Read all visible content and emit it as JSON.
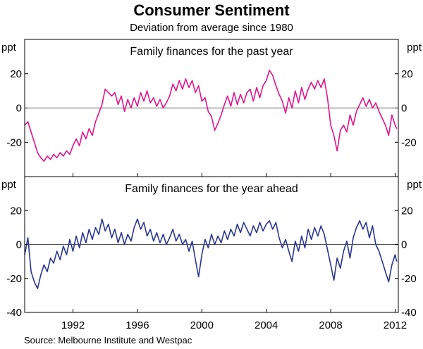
{
  "chart_data": {
    "type": "line",
    "title": "Consumer Sentiment",
    "subtitle": "Deviation from average since 1980",
    "source": "Source: Melbourne Institute and Westpac",
    "x_range": [
      1989.0,
      2012.2
    ],
    "x_ticks": [
      1992,
      1996,
      2000,
      2004,
      2008,
      2012
    ],
    "y_unit_label": "ppt",
    "panels": [
      {
        "title": "Family finances for the past year",
        "ylim": [
          -40,
          40
        ],
        "y_ticks": [
          20,
          0,
          -20
        ],
        "series": [
          {
            "name": "Family finances for the past year",
            "color": "#e0158c",
            "points": [
              [
                1989.0,
                -10
              ],
              [
                1989.2,
                -8
              ],
              [
                1989.4,
                -14
              ],
              [
                1989.6,
                -20
              ],
              [
                1989.8,
                -26
              ],
              [
                1990.0,
                -29
              ],
              [
                1990.2,
                -31
              ],
              [
                1990.4,
                -28
              ],
              [
                1990.6,
                -30
              ],
              [
                1990.8,
                -27
              ],
              [
                1991.0,
                -29
              ],
              [
                1991.2,
                -26
              ],
              [
                1991.4,
                -28
              ],
              [
                1991.6,
                -25
              ],
              [
                1991.8,
                -27
              ],
              [
                1992.0,
                -22
              ],
              [
                1992.2,
                -18
              ],
              [
                1992.4,
                -22
              ],
              [
                1992.6,
                -14
              ],
              [
                1992.8,
                -18
              ],
              [
                1993.0,
                -12
              ],
              [
                1993.2,
                -16
              ],
              [
                1993.4,
                -8
              ],
              [
                1993.6,
                -3
              ],
              [
                1993.8,
                2
              ],
              [
                1994.0,
                11
              ],
              [
                1994.2,
                9
              ],
              [
                1994.4,
                7
              ],
              [
                1994.6,
                9
              ],
              [
                1994.8,
                2
              ],
              [
                1995.0,
                7
              ],
              [
                1995.2,
                -2
              ],
              [
                1995.4,
                5
              ],
              [
                1995.6,
                0
              ],
              [
                1995.8,
                6
              ],
              [
                1996.0,
                1
              ],
              [
                1996.2,
                9
              ],
              [
                1996.4,
                4
              ],
              [
                1996.6,
                10
              ],
              [
                1996.8,
                3
              ],
              [
                1997.0,
                6
              ],
              [
                1997.2,
                1
              ],
              [
                1997.4,
                5
              ],
              [
                1997.6,
                0
              ],
              [
                1997.8,
                3
              ],
              [
                1998.0,
                7
              ],
              [
                1998.2,
                14
              ],
              [
                1998.4,
                10
              ],
              [
                1998.6,
                16
              ],
              [
                1998.8,
                11
              ],
              [
                1999.0,
                17
              ],
              [
                1999.2,
                12
              ],
              [
                1999.4,
                16
              ],
              [
                1999.6,
                9
              ],
              [
                1999.8,
                13
              ],
              [
                2000.0,
                4
              ],
              [
                2000.2,
                6
              ],
              [
                2000.4,
                -2
              ],
              [
                2000.6,
                -5
              ],
              [
                2000.8,
                -13
              ],
              [
                2001.0,
                -9
              ],
              [
                2001.2,
                -4
              ],
              [
                2001.4,
                2
              ],
              [
                2001.6,
                7
              ],
              [
                2001.8,
                1
              ],
              [
                2002.0,
                9
              ],
              [
                2002.2,
                2
              ],
              [
                2002.4,
                8
              ],
              [
                2002.6,
                3
              ],
              [
                2002.8,
                9
              ],
              [
                2003.0,
                11
              ],
              [
                2003.2,
                4
              ],
              [
                2003.4,
                12
              ],
              [
                2003.6,
                6
              ],
              [
                2003.8,
                13
              ],
              [
                2004.0,
                16
              ],
              [
                2004.2,
                22
              ],
              [
                2004.4,
                19
              ],
              [
                2004.6,
                13
              ],
              [
                2004.8,
                8
              ],
              [
                2005.0,
                4
              ],
              [
                2005.2,
                -3
              ],
              [
                2005.4,
                6
              ],
              [
                2005.6,
                0
              ],
              [
                2005.8,
                10
              ],
              [
                2006.0,
                3
              ],
              [
                2006.2,
                12
              ],
              [
                2006.4,
                5
              ],
              [
                2006.6,
                11
              ],
              [
                2006.8,
                15
              ],
              [
                2007.0,
                11
              ],
              [
                2007.2,
                16
              ],
              [
                2007.4,
                12
              ],
              [
                2007.6,
                17
              ],
              [
                2007.8,
                6
              ],
              [
                2008.0,
                -10
              ],
              [
                2008.2,
                -16
              ],
              [
                2008.4,
                -25
              ],
              [
                2008.6,
                -13
              ],
              [
                2008.8,
                -10
              ],
              [
                2009.0,
                -14
              ],
              [
                2009.2,
                -4
              ],
              [
                2009.4,
                -10
              ],
              [
                2009.6,
                -2
              ],
              [
                2009.8,
                2
              ],
              [
                2010.0,
                6
              ],
              [
                2010.2,
                1
              ],
              [
                2010.4,
                5
              ],
              [
                2010.6,
                0
              ],
              [
                2010.8,
                3
              ],
              [
                2011.0,
                -2
              ],
              [
                2011.2,
                -6
              ],
              [
                2011.4,
                -10
              ],
              [
                2011.6,
                -16
              ],
              [
                2011.8,
                -4
              ],
              [
                2012.0,
                -10
              ],
              [
                2012.1,
                -12
              ]
            ]
          }
        ]
      },
      {
        "title": "Family finances for the year ahead",
        "ylim": [
          -40,
          40
        ],
        "y_ticks": [
          20,
          0,
          -20,
          -40
        ],
        "series": [
          {
            "name": "Family finances for the year ahead",
            "color": "#2b3590",
            "points": [
              [
                1989.0,
                -6
              ],
              [
                1989.2,
                4
              ],
              [
                1989.4,
                -16
              ],
              [
                1989.6,
                -22
              ],
              [
                1989.8,
                -26
              ],
              [
                1990.0,
                -18
              ],
              [
                1990.2,
                -12
              ],
              [
                1990.4,
                -16
              ],
              [
                1990.6,
                -8
              ],
              [
                1990.8,
                -11
              ],
              [
                1991.0,
                -4
              ],
              [
                1991.2,
                -9
              ],
              [
                1991.4,
                -1
              ],
              [
                1991.6,
                -6
              ],
              [
                1991.8,
                3
              ],
              [
                1992.0,
                -4
              ],
              [
                1992.2,
                5
              ],
              [
                1992.4,
                -2
              ],
              [
                1992.6,
                7
              ],
              [
                1992.8,
                1
              ],
              [
                1993.0,
                9
              ],
              [
                1993.2,
                3
              ],
              [
                1993.4,
                10
              ],
              [
                1993.6,
                6
              ],
              [
                1993.8,
                15
              ],
              [
                1994.0,
                8
              ],
              [
                1994.2,
                12
              ],
              [
                1994.4,
                4
              ],
              [
                1994.6,
                9
              ],
              [
                1994.8,
                1
              ],
              [
                1995.0,
                7
              ],
              [
                1995.2,
                0
              ],
              [
                1995.4,
                6
              ],
              [
                1995.6,
                2
              ],
              [
                1995.8,
                10
              ],
              [
                1996.0,
                15
              ],
              [
                1996.2,
                9
              ],
              [
                1996.4,
                13
              ],
              [
                1996.6,
                5
              ],
              [
                1996.8,
                9
              ],
              [
                1997.0,
                2
              ],
              [
                1997.2,
                7
              ],
              [
                1997.4,
                1
              ],
              [
                1997.6,
                6
              ],
              [
                1997.8,
                0
              ],
              [
                1998.0,
                4
              ],
              [
                1998.2,
                9
              ],
              [
                1998.4,
                2
              ],
              [
                1998.6,
                6
              ],
              [
                1998.8,
                0
              ],
              [
                1999.0,
                3
              ],
              [
                1999.2,
                -4
              ],
              [
                1999.4,
                2
              ],
              [
                1999.6,
                -9
              ],
              [
                1999.8,
                -19
              ],
              [
                2000.0,
                -6
              ],
              [
                2000.2,
                3
              ],
              [
                2000.4,
                -2
              ],
              [
                2000.6,
                6
              ],
              [
                2000.8,
                0
              ],
              [
                2001.0,
                5
              ],
              [
                2001.2,
                1
              ],
              [
                2001.4,
                8
              ],
              [
                2001.6,
                3
              ],
              [
                2001.8,
                9
              ],
              [
                2002.0,
                5
              ],
              [
                2002.2,
                12
              ],
              [
                2002.4,
                7
              ],
              [
                2002.6,
                13
              ],
              [
                2002.8,
                9
              ],
              [
                2003.0,
                5
              ],
              [
                2003.2,
                11
              ],
              [
                2003.4,
                7
              ],
              [
                2003.6,
                13
              ],
              [
                2003.8,
                8
              ],
              [
                2004.0,
                12
              ],
              [
                2004.2,
                14
              ],
              [
                2004.4,
                9
              ],
              [
                2004.6,
                13
              ],
              [
                2004.8,
                4
              ],
              [
                2005.0,
                -2
              ],
              [
                2005.2,
                3
              ],
              [
                2005.4,
                -4
              ],
              [
                2005.6,
                -10
              ],
              [
                2005.8,
                2
              ],
              [
                2006.0,
                -4
              ],
              [
                2006.2,
                5
              ],
              [
                2006.4,
                -2
              ],
              [
                2006.6,
                9
              ],
              [
                2006.8,
                3
              ],
              [
                2007.0,
                10
              ],
              [
                2007.2,
                5
              ],
              [
                2007.4,
                11
              ],
              [
                2007.6,
                6
              ],
              [
                2007.8,
                -3
              ],
              [
                2008.0,
                -12
              ],
              [
                2008.2,
                -21
              ],
              [
                2008.4,
                -8
              ],
              [
                2008.6,
                -14
              ],
              [
                2008.8,
                -4
              ],
              [
                2009.0,
                2
              ],
              [
                2009.2,
                -8
              ],
              [
                2009.4,
                4
              ],
              [
                2009.6,
                10
              ],
              [
                2009.8,
                14
              ],
              [
                2010.0,
                9
              ],
              [
                2010.2,
                13
              ],
              [
                2010.4,
                4
              ],
              [
                2010.6,
                11
              ],
              [
                2010.8,
                0
              ],
              [
                2011.0,
                -4
              ],
              [
                2011.2,
                -10
              ],
              [
                2011.4,
                -16
              ],
              [
                2011.6,
                -22
              ],
              [
                2011.8,
                -12
              ],
              [
                2012.0,
                -6
              ],
              [
                2012.1,
                -10
              ]
            ]
          }
        ]
      }
    ]
  }
}
